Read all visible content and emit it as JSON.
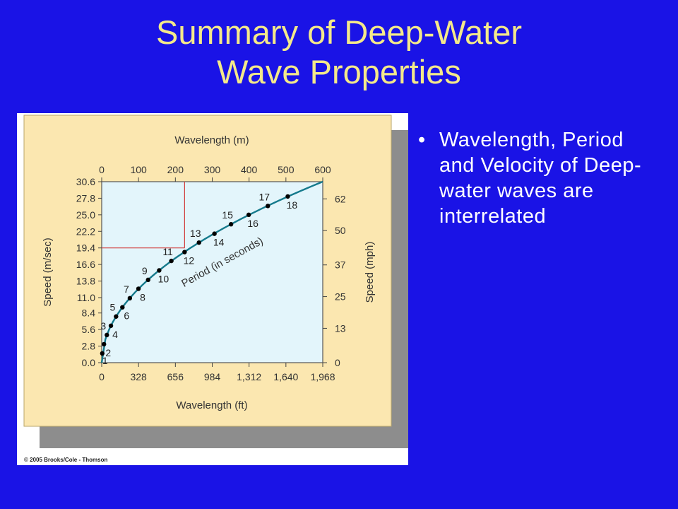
{
  "slide": {
    "title_line1": "Summary of Deep-Water",
    "title_line2": "Wave Properties",
    "bullets": [
      "Wavelength, Period and Velocity of Deep-water waves are interrelated"
    ],
    "copyright": "© 2005 Brooks/Cole - Thomson"
  },
  "colors": {
    "background": "#1a13e6",
    "title": "#f4e98a",
    "panel": "#fbe7b0",
    "plot": "#e3f5fb",
    "curve": "#157a8c",
    "guide": "#d23a3a"
  },
  "chart_data": {
    "type": "line",
    "top_axis": {
      "label": "Wavelength (m)",
      "ticks": [
        "0",
        "100",
        "200",
        "300",
        "400",
        "500",
        "600"
      ],
      "range": [
        0,
        600
      ]
    },
    "bottom_axis": {
      "label": "Wavelength (ft)",
      "ticks": [
        "0",
        "328",
        "656",
        "984",
        "1,312",
        "1,640",
        "1,968"
      ],
      "range": [
        0,
        1968
      ]
    },
    "left_axis": {
      "label": "Speed (m/sec)",
      "ticks": [
        "0.0",
        "2.8",
        "5.6",
        "8.4",
        "11.0",
        "13.8",
        "16.6",
        "19.4",
        "22.2",
        "25.0",
        "27.8",
        "30.6"
      ],
      "range": [
        0,
        30.6
      ]
    },
    "right_axis": {
      "label": "Speed (mph)",
      "ticks": [
        "0",
        "13",
        "25",
        "37",
        "50",
        "62"
      ],
      "range": [
        0,
        68.5
      ]
    },
    "curve_label": "Period (in seconds)",
    "series": [
      {
        "points": [
          {
            "period": "1",
            "wavelength_m": 1.56,
            "speed_ms": 1.56
          },
          {
            "period": "2",
            "wavelength_m": 6.24,
            "speed_ms": 3.12
          },
          {
            "period": "3",
            "wavelength_m": 14.0,
            "speed_ms": 4.68
          },
          {
            "period": "4",
            "wavelength_m": 25.0,
            "speed_ms": 6.24
          },
          {
            "period": "5",
            "wavelength_m": 39.0,
            "speed_ms": 7.8
          },
          {
            "period": "6",
            "wavelength_m": 56.2,
            "speed_ms": 9.36
          },
          {
            "period": "7",
            "wavelength_m": 76.4,
            "speed_ms": 10.9
          },
          {
            "period": "8",
            "wavelength_m": 99.8,
            "speed_ms": 12.5
          },
          {
            "period": "9",
            "wavelength_m": 126,
            "speed_ms": 14.0
          },
          {
            "period": "10",
            "wavelength_m": 156,
            "speed_ms": 15.6
          },
          {
            "period": "11",
            "wavelength_m": 189,
            "speed_ms": 17.2
          },
          {
            "period": "12",
            "wavelength_m": 225,
            "speed_ms": 18.7
          },
          {
            "period": "13",
            "wavelength_m": 264,
            "speed_ms": 20.3
          },
          {
            "period": "14",
            "wavelength_m": 306,
            "speed_ms": 21.8
          },
          {
            "period": "15",
            "wavelength_m": 351,
            "speed_ms": 23.4
          },
          {
            "period": "16",
            "wavelength_m": 399,
            "speed_ms": 25.0
          },
          {
            "period": "17",
            "wavelength_m": 451,
            "speed_ms": 26.5
          },
          {
            "period": "18",
            "wavelength_m": 505,
            "speed_ms": 28.1
          }
        ]
      }
    ],
    "guide": {
      "wavelength_m": 225,
      "speed_ms": 19.4
    },
    "grid": false
  }
}
